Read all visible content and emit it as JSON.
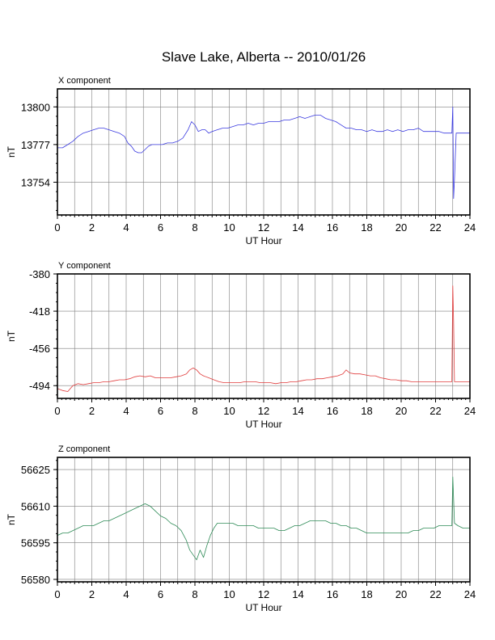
{
  "title": "Slave Lake, Alberta -- 2010/01/26",
  "chart_data": [
    {
      "type": "line",
      "panel_title": "X component",
      "xlabel": "UT Hour",
      "ylabel": "nT",
      "xlim": [
        0,
        24
      ],
      "ylim": [
        13734,
        13811
      ],
      "xticks": [
        0,
        2,
        4,
        6,
        8,
        10,
        12,
        14,
        16,
        18,
        20,
        22,
        24
      ],
      "yticks": [
        13754,
        13777,
        13800
      ],
      "color": "#3a3ae0",
      "x": [
        0,
        0.3,
        0.6,
        0.9,
        1.2,
        1.5,
        1.8,
        2.1,
        2.4,
        2.7,
        3.0,
        3.3,
        3.6,
        3.9,
        4.1,
        4.3,
        4.5,
        4.7,
        4.9,
        5.1,
        5.3,
        5.5,
        5.8,
        6.1,
        6.4,
        6.7,
        7.0,
        7.3,
        7.6,
        7.8,
        8.0,
        8.2,
        8.4,
        8.6,
        8.8,
        9.0,
        9.3,
        9.6,
        9.9,
        10.2,
        10.5,
        10.8,
        11.1,
        11.4,
        11.7,
        12.0,
        12.3,
        12.6,
        12.9,
        13.2,
        13.5,
        13.8,
        14.1,
        14.4,
        14.7,
        15.0,
        15.3,
        15.6,
        15.9,
        16.2,
        16.5,
        16.8,
        17.1,
        17.4,
        17.7,
        18.0,
        18.3,
        18.6,
        18.9,
        19.2,
        19.5,
        19.8,
        20.1,
        20.4,
        20.7,
        21.0,
        21.3,
        21.6,
        21.9,
        22.2,
        22.5,
        22.8,
        22.95,
        23.0,
        23.05,
        23.1,
        23.2,
        23.5,
        23.8,
        24.0
      ],
      "y": [
        13775,
        13775,
        13777,
        13779,
        13782,
        13784,
        13785,
        13786,
        13787,
        13787,
        13786,
        13785,
        13784,
        13782,
        13778,
        13776,
        13773,
        13772,
        13772,
        13774,
        13776,
        13777,
        13777,
        13777,
        13778,
        13778,
        13779,
        13781,
        13786,
        13791,
        13789,
        13785,
        13786,
        13786,
        13784,
        13785,
        13786,
        13787,
        13787,
        13788,
        13789,
        13789,
        13790,
        13789,
        13790,
        13790,
        13791,
        13791,
        13791,
        13792,
        13792,
        13793,
        13794,
        13793,
        13794,
        13795,
        13795,
        13793,
        13792,
        13791,
        13789,
        13787,
        13787,
        13786,
        13786,
        13785,
        13786,
        13785,
        13785,
        13786,
        13785,
        13786,
        13785,
        13786,
        13786,
        13787,
        13785,
        13785,
        13785,
        13785,
        13784,
        13784,
        13784,
        13800,
        13744,
        13756,
        13784,
        13784,
        13784,
        13784
      ]
    },
    {
      "type": "line",
      "panel_title": "Y component",
      "xlabel": "UT Hour",
      "ylabel": "nT",
      "xlim": [
        0,
        24
      ],
      "ylim": [
        -507,
        -380
      ],
      "xticks": [
        0,
        2,
        4,
        6,
        8,
        10,
        12,
        14,
        16,
        18,
        20,
        22,
        24
      ],
      "yticks": [
        -494,
        -456,
        -418,
        -380
      ],
      "color": "#e03a3a",
      "x": [
        0,
        0.3,
        0.6,
        0.9,
        1.2,
        1.5,
        1.8,
        2.1,
        2.4,
        2.7,
        3.0,
        3.3,
        3.6,
        3.9,
        4.2,
        4.5,
        4.8,
        5.1,
        5.4,
        5.7,
        6.0,
        6.3,
        6.6,
        6.9,
        7.2,
        7.5,
        7.7,
        7.9,
        8.1,
        8.3,
        8.5,
        8.8,
        9.1,
        9.4,
        9.7,
        10.0,
        10.3,
        10.6,
        10.9,
        11.2,
        11.5,
        11.8,
        12.1,
        12.4,
        12.7,
        13.0,
        13.3,
        13.6,
        13.9,
        14.2,
        14.5,
        14.8,
        15.1,
        15.4,
        15.7,
        16.0,
        16.3,
        16.6,
        16.8,
        17.0,
        17.3,
        17.6,
        17.9,
        18.2,
        18.5,
        18.8,
        19.1,
        19.4,
        19.7,
        20.0,
        20.3,
        20.6,
        20.9,
        21.2,
        21.5,
        21.8,
        22.1,
        22.4,
        22.7,
        22.95,
        23.0,
        23.05,
        23.1,
        23.2,
        23.5,
        23.8,
        24.0
      ],
      "y": [
        -497,
        -499,
        -500,
        -494,
        -492,
        -493,
        -492,
        -491,
        -491,
        -490,
        -490,
        -489,
        -488,
        -488,
        -487,
        -485,
        -484,
        -485,
        -484,
        -486,
        -486,
        -486,
        -486,
        -485,
        -484,
        -482,
        -478,
        -476,
        -478,
        -482,
        -484,
        -486,
        -488,
        -490,
        -491,
        -491,
        -491,
        -491,
        -490,
        -490,
        -490,
        -491,
        -491,
        -491,
        -492,
        -491,
        -491,
        -490,
        -490,
        -489,
        -488,
        -488,
        -487,
        -487,
        -486,
        -485,
        -484,
        -482,
        -478,
        -481,
        -482,
        -482,
        -483,
        -484,
        -484,
        -486,
        -487,
        -488,
        -488,
        -489,
        -489,
        -490,
        -490,
        -490,
        -490,
        -490,
        -490,
        -490,
        -490,
        -490,
        -392,
        -428,
        -490,
        -490,
        -490,
        -490,
        -490
      ]
    },
    {
      "type": "line",
      "panel_title": "Z component",
      "xlabel": "UT Hour",
      "ylabel": "nT",
      "xlim": [
        0,
        24
      ],
      "ylim": [
        56579,
        56630
      ],
      "xticks": [
        0,
        2,
        4,
        6,
        8,
        10,
        12,
        14,
        16,
        18,
        20,
        22,
        24
      ],
      "yticks": [
        56580,
        56595,
        56610,
        56625
      ],
      "color": "#2e8b57",
      "x": [
        0,
        0.3,
        0.6,
        0.9,
        1.2,
        1.5,
        1.8,
        2.1,
        2.4,
        2.7,
        3.0,
        3.3,
        3.6,
        3.9,
        4.2,
        4.5,
        4.8,
        5.1,
        5.4,
        5.7,
        6.0,
        6.3,
        6.6,
        6.9,
        7.2,
        7.5,
        7.7,
        7.9,
        8.1,
        8.3,
        8.5,
        8.7,
        8.9,
        9.1,
        9.3,
        9.6,
        9.9,
        10.2,
        10.5,
        10.8,
        11.1,
        11.4,
        11.7,
        12.0,
        12.3,
        12.6,
        12.9,
        13.2,
        13.5,
        13.8,
        14.1,
        14.4,
        14.7,
        15.0,
        15.3,
        15.6,
        15.9,
        16.2,
        16.5,
        16.8,
        17.1,
        17.4,
        17.7,
        18.0,
        18.3,
        18.6,
        18.9,
        19.2,
        19.5,
        19.8,
        20.1,
        20.4,
        20.7,
        21.0,
        21.3,
        21.6,
        21.9,
        22.2,
        22.5,
        22.8,
        22.95,
        23.0,
        23.05,
        23.1,
        23.3,
        23.6,
        24.0
      ],
      "y": [
        56598,
        56599,
        56599,
        56600,
        56601,
        56602,
        56602,
        56602,
        56603,
        56604,
        56604,
        56605,
        56606,
        56607,
        56608,
        56609,
        56610,
        56611,
        56610,
        56608,
        56606,
        56605,
        56603,
        56602,
        56600,
        56596,
        56592,
        56590,
        56588,
        56592,
        56589,
        56594,
        56598,
        56601,
        56603,
        56603,
        56603,
        56603,
        56602,
        56602,
        56602,
        56602,
        56601,
        56601,
        56601,
        56601,
        56600,
        56600,
        56601,
        56602,
        56602,
        56603,
        56604,
        56604,
        56604,
        56604,
        56603,
        56603,
        56602,
        56602,
        56601,
        56601,
        56600,
        56599,
        56599,
        56599,
        56599,
        56599,
        56599,
        56599,
        56599,
        56599,
        56600,
        56600,
        56601,
        56601,
        56601,
        56602,
        56602,
        56602,
        56602,
        56622,
        56613,
        56603,
        56602,
        56601,
        56601
      ]
    }
  ]
}
